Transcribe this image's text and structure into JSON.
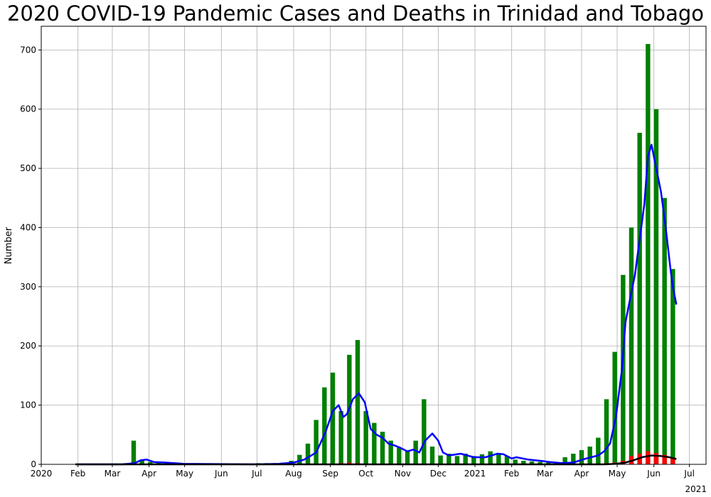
{
  "chart_data": {
    "type": "bar",
    "title": "2020 COVID-19 Pandemic Cases and Deaths in Trinidad and Tobago",
    "xlabel": "",
    "ylabel": "Number",
    "xlim": [
      "2020-01-01",
      "2021-07-15"
    ],
    "ylim": [
      0,
      740
    ],
    "yticks": [
      0,
      100,
      200,
      300,
      400,
      500,
      600,
      700
    ],
    "xticks": [
      {
        "date": "2020-01-01",
        "label": "2020"
      },
      {
        "date": "2020-02-01",
        "label": "Feb"
      },
      {
        "date": "2020-03-01",
        "label": "Mar"
      },
      {
        "date": "2020-04-01",
        "label": "Apr"
      },
      {
        "date": "2020-05-01",
        "label": "May"
      },
      {
        "date": "2020-06-01",
        "label": "Jun"
      },
      {
        "date": "2020-07-01",
        "label": "Jul"
      },
      {
        "date": "2020-08-01",
        "label": "Aug"
      },
      {
        "date": "2020-09-01",
        "label": "Sep"
      },
      {
        "date": "2020-10-01",
        "label": "Oct"
      },
      {
        "date": "2020-11-01",
        "label": "Nov"
      },
      {
        "date": "2020-12-01",
        "label": "Dec"
      },
      {
        "date": "2021-01-01",
        "label": "2021"
      },
      {
        "date": "2021-02-01",
        "label": "Feb"
      },
      {
        "date": "2021-03-01",
        "label": "Mar"
      },
      {
        "date": "2021-04-01",
        "label": "Apr"
      },
      {
        "date": "2021-05-01",
        "label": "May"
      },
      {
        "date": "2021-06-01",
        "label": "Jun"
      },
      {
        "date": "2021-07-01",
        "label": "Jul"
      }
    ],
    "year_offset_label": "2021",
    "grid": true,
    "series": [
      {
        "kind": "bar",
        "color": "#008000",
        "resolution": "weekly",
        "x": [
          "2020-01-30",
          "2020-02-06",
          "2020-02-13",
          "2020-02-20",
          "2020-02-27",
          "2020-03-05",
          "2020-03-12",
          "2020-03-19",
          "2020-03-26",
          "2020-04-02",
          "2020-04-09",
          "2020-04-16",
          "2020-04-23",
          "2020-04-30",
          "2020-05-07",
          "2020-05-14",
          "2020-05-21",
          "2020-05-28",
          "2020-06-04",
          "2020-06-11",
          "2020-06-18",
          "2020-06-25",
          "2020-07-02",
          "2020-07-09",
          "2020-07-16",
          "2020-07-23",
          "2020-07-30",
          "2020-08-06",
          "2020-08-13",
          "2020-08-20",
          "2020-08-27",
          "2020-09-03",
          "2020-09-10",
          "2020-09-17",
          "2020-09-24",
          "2020-10-01",
          "2020-10-08",
          "2020-10-15",
          "2020-10-22",
          "2020-10-29",
          "2020-11-05",
          "2020-11-12",
          "2020-11-19",
          "2020-11-26",
          "2020-12-03",
          "2020-12-10",
          "2020-12-17",
          "2020-12-24",
          "2020-12-31",
          "2021-01-07",
          "2021-01-14",
          "2021-01-21",
          "2021-01-28",
          "2021-02-04",
          "2021-02-11",
          "2021-02-18",
          "2021-02-25",
          "2021-03-04",
          "2021-03-11",
          "2021-03-18",
          "2021-03-25",
          "2021-04-01",
          "2021-04-08",
          "2021-04-15",
          "2021-04-22",
          "2021-04-29",
          "2021-05-06",
          "2021-05-13",
          "2021-05-20",
          "2021-05-27",
          "2021-06-03",
          "2021-06-10",
          "2021-06-17"
        ],
        "values": [
          0,
          0,
          0,
          0,
          0,
          0,
          2,
          40,
          8,
          4,
          3,
          2,
          1,
          0,
          0,
          0,
          0,
          0,
          0,
          0,
          1,
          1,
          2,
          2,
          2,
          3,
          6,
          16,
          35,
          75,
          130,
          155,
          90,
          185,
          210,
          90,
          70,
          55,
          40,
          28,
          22,
          40,
          110,
          30,
          15,
          18,
          14,
          18,
          14,
          17,
          22,
          18,
          14,
          8,
          6,
          5,
          4,
          3,
          4,
          12,
          18,
          24,
          30,
          45,
          110,
          190,
          320,
          400,
          560,
          710,
          600,
          450,
          330
        ]
      },
      {
        "kind": "bar",
        "color": "#ff0000",
        "resolution": "weekly",
        "x": [
          "2020-09-03",
          "2020-09-10",
          "2020-09-17",
          "2020-09-24",
          "2020-10-01",
          "2021-04-22",
          "2021-04-29",
          "2021-05-06",
          "2021-05-13",
          "2021-05-20",
          "2021-05-27",
          "2021-06-03",
          "2021-06-10",
          "2021-06-17"
        ],
        "values": [
          1,
          2,
          3,
          2,
          1,
          2,
          3,
          6,
          14,
          18,
          22,
          19,
          16,
          12
        ]
      },
      {
        "kind": "line",
        "color": "#0000ff",
        "x": [
          "2020-01-30",
          "2020-03-10",
          "2020-03-20",
          "2020-03-25",
          "2020-03-30",
          "2020-04-05",
          "2020-04-15",
          "2020-04-30",
          "2020-06-30",
          "2020-07-20",
          "2020-08-01",
          "2020-08-10",
          "2020-08-20",
          "2020-08-28",
          "2020-09-03",
          "2020-09-08",
          "2020-09-12",
          "2020-09-15",
          "2020-09-20",
          "2020-09-25",
          "2020-09-30",
          "2020-10-05",
          "2020-10-10",
          "2020-10-15",
          "2020-10-20",
          "2020-10-25",
          "2020-10-30",
          "2020-11-05",
          "2020-11-10",
          "2020-11-15",
          "2020-11-20",
          "2020-11-26",
          "2020-12-01",
          "2020-12-05",
          "2020-12-10",
          "2020-12-20",
          "2020-12-31",
          "2021-01-10",
          "2021-01-15",
          "2021-01-20",
          "2021-01-25",
          "2021-02-01",
          "2021-02-05",
          "2021-02-15",
          "2021-02-25",
          "2021-03-05",
          "2021-03-15",
          "2021-03-25",
          "2021-04-05",
          "2021-04-15",
          "2021-04-20",
          "2021-04-25",
          "2021-04-30",
          "2021-05-05",
          "2021-05-08",
          "2021-05-12",
          "2021-05-16",
          "2021-05-20",
          "2021-05-24",
          "2021-05-27",
          "2021-05-30",
          "2021-06-03",
          "2021-06-07",
          "2021-06-11",
          "2021-06-15",
          "2021-06-17",
          "2021-06-20"
        ],
        "values": [
          0,
          0,
          2,
          7,
          8,
          4,
          3,
          1,
          0,
          1,
          3,
          8,
          20,
          55,
          90,
          100,
          80,
          85,
          110,
          120,
          105,
          60,
          50,
          45,
          35,
          32,
          28,
          22,
          25,
          20,
          40,
          52,
          40,
          20,
          15,
          18,
          12,
          12,
          15,
          18,
          17,
          10,
          12,
          8,
          6,
          4,
          2,
          3,
          10,
          15,
          22,
          35,
          80,
          160,
          240,
          280,
          320,
          380,
          440,
          520,
          540,
          500,
          460,
          400,
          330,
          300,
          270
        ]
      },
      {
        "kind": "line",
        "color": "#000000",
        "x": [
          "2020-01-30",
          "2020-04-01",
          "2021-04-20",
          "2021-04-30",
          "2021-05-08",
          "2021-05-15",
          "2021-05-22",
          "2021-05-30",
          "2021-06-07",
          "2021-06-14",
          "2021-06-20"
        ],
        "values": [
          0,
          0,
          0,
          1,
          3,
          7,
          12,
          15,
          14,
          12,
          9
        ]
      }
    ]
  }
}
